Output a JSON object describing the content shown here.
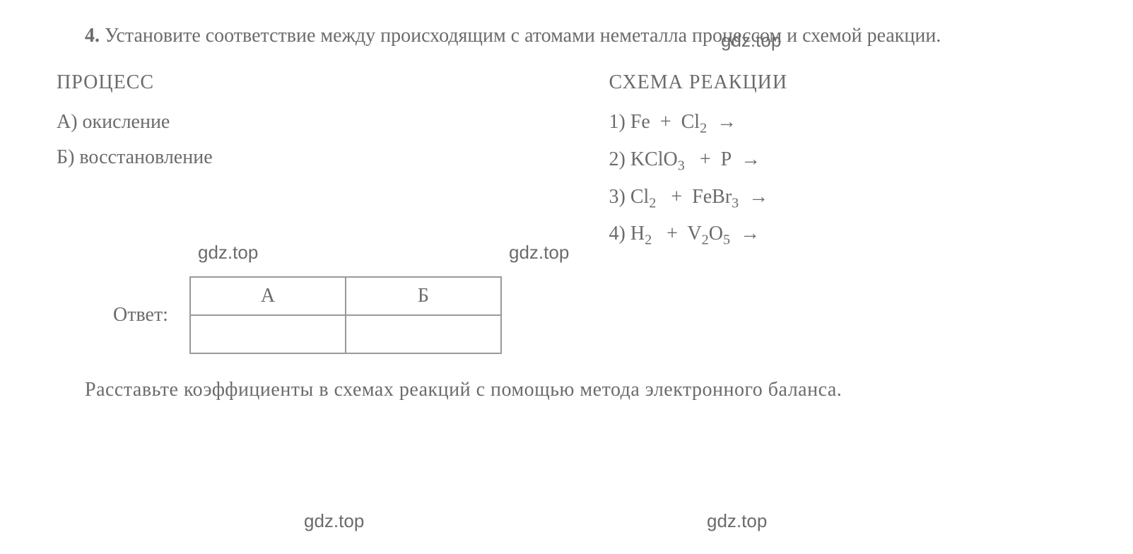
{
  "colors": {
    "text": "#6b6b6b",
    "background": "#ffffff",
    "border": "#9a9a9a"
  },
  "typography": {
    "body_fontsize": 28,
    "font_family": "Georgia, 'Times New Roman', serif",
    "sub_scale": 0.72
  },
  "question": {
    "number": "4.",
    "intro_text": "Установите соответствие между происходящим с атомами неметалла процессом и схемой реакции."
  },
  "watermarks": {
    "text": "gdz.top"
  },
  "left_column": {
    "header": "ПРОЦЕСС",
    "items": [
      {
        "label": "А)",
        "text": "окисление"
      },
      {
        "label": "Б)",
        "text": "восстановление"
      }
    ]
  },
  "right_column": {
    "header": "СХЕМА РЕАКЦИИ",
    "reactions": [
      {
        "num": "1)",
        "reagents": [
          {
            "el": "Fe"
          },
          {
            "el": "Cl",
            "sub": "2"
          }
        ]
      },
      {
        "num": "2)",
        "reagents": [
          {
            "el": "KClO",
            "sub": "3"
          },
          {
            "el": "P"
          }
        ]
      },
      {
        "num": "3)",
        "reagents": [
          {
            "el": "Cl",
            "sub": "2"
          },
          {
            "el": "FeBr",
            "sub": "3"
          }
        ]
      },
      {
        "num": "4)",
        "reagents": [
          {
            "el": "H",
            "sub": "2"
          },
          {
            "el": "V",
            "sub": "2",
            "el2": "O",
            "sub2": "5"
          }
        ]
      }
    ],
    "arrow": "→",
    "plus": "+"
  },
  "answer": {
    "label": "Ответ:",
    "headers": [
      "А",
      "Б"
    ],
    "cells": [
      "",
      ""
    ]
  },
  "footer": {
    "text": "Расставьте коэффициенты в схемах реакций с помощью метода электронного баланса."
  }
}
